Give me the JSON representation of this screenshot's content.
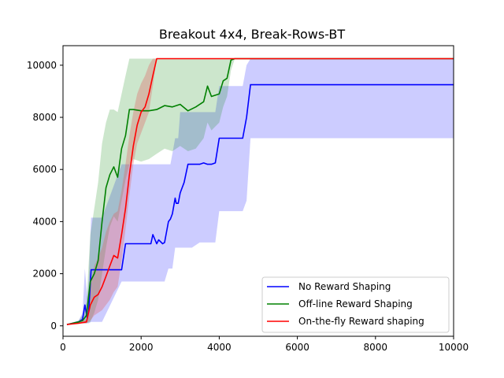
{
  "chart_data": {
    "type": "line",
    "title": "Breakout 4x4, Break-Rows-BT",
    "xlabel": "",
    "ylabel": "",
    "xlim": [
      0,
      10000
    ],
    "ylim": [
      -400,
      10750
    ],
    "x_ticks": [
      0,
      2000,
      4000,
      6000,
      8000,
      10000
    ],
    "y_ticks": [
      0,
      2000,
      4000,
      6000,
      8000,
      10000
    ],
    "x_tick_labels": [
      "0",
      "2000",
      "4000",
      "6000",
      "8000",
      "10000"
    ],
    "y_tick_labels": [
      "0",
      "2000",
      "4000",
      "6000",
      "8000",
      "10000"
    ],
    "grid": false,
    "legend_position": "lower-right",
    "series": [
      {
        "name": "No Reward Shaping",
        "color": "#0000ff",
        "band_color": "#0000ff",
        "band_opacity": 0.2,
        "x": [
          100,
          400,
          500,
          560,
          620,
          660,
          720,
          900,
          1000,
          1500,
          1600,
          2250,
          2300,
          2400,
          2450,
          2550,
          2600,
          2700,
          2750,
          2800,
          2870,
          2900,
          2950,
          3000,
          3100,
          3200,
          3300,
          3500,
          3600,
          3700,
          3800,
          3900,
          4000,
          4050,
          4600,
          4700,
          4800,
          5000,
          8000,
          8200,
          10000
        ],
        "y": [
          50,
          150,
          250,
          800,
          300,
          600,
          2150,
          2150,
          2150,
          2150,
          3150,
          3150,
          3500,
          3150,
          3300,
          3150,
          3200,
          4000,
          4100,
          4300,
          4900,
          4700,
          4700,
          5100,
          5500,
          6200,
          6200,
          6200,
          6250,
          6200,
          6200,
          6250,
          7200,
          7200,
          7200,
          8000,
          9250,
          9250,
          9250,
          9250,
          9250
        ],
        "lower": [
          50,
          100,
          100,
          100,
          100,
          100,
          150,
          150,
          150,
          1700,
          1700,
          1700,
          1700,
          1700,
          1700,
          1700,
          1700,
          2200,
          2200,
          2200,
          3000,
          3000,
          3000,
          3000,
          3000,
          3000,
          3000,
          3200,
          3200,
          3200,
          3200,
          3200,
          4400,
          4400,
          4400,
          4800,
          7200,
          7200,
          7200,
          7200,
          7200
        ],
        "upper": [
          60,
          200,
          500,
          2200,
          1100,
          1800,
          4150,
          4150,
          4150,
          6200,
          6200,
          6200,
          6200,
          6200,
          6200,
          6200,
          6200,
          6200,
          6200,
          6600,
          7200,
          7200,
          7200,
          8200,
          8200,
          8200,
          8200,
          8200,
          8200,
          8200,
          8200,
          8200,
          9200,
          9200,
          9200,
          10000,
          10250,
          10250,
          10250,
          10250,
          10250
        ]
      },
      {
        "name": "Off-line Reward Shaping",
        "color": "#008000",
        "band_color": "#008000",
        "band_opacity": 0.2,
        "x": [
          100,
          400,
          500,
          600,
          700,
          800,
          900,
          1000,
          1100,
          1200,
          1300,
          1400,
          1500,
          1600,
          1700,
          1800,
          2000,
          2200,
          2400,
          2600,
          2800,
          3000,
          3200,
          3400,
          3600,
          3700,
          3800,
          4000,
          4100,
          4200,
          4300,
          4400,
          4500,
          10000
        ],
        "y": [
          50,
          150,
          200,
          400,
          1700,
          2000,
          2500,
          4000,
          5300,
          5800,
          6100,
          5700,
          6800,
          7300,
          8300,
          8300,
          8250,
          8250,
          8300,
          8450,
          8400,
          8500,
          8250,
          8400,
          8600,
          9200,
          8800,
          8900,
          9400,
          9500,
          10200,
          10250,
          10250,
          10250
        ],
        "lower": [
          50,
          100,
          100,
          100,
          150,
          500,
          1000,
          2000,
          3000,
          3800,
          4200,
          4000,
          4800,
          5600,
          6200,
          6400,
          6300,
          6400,
          6600,
          6800,
          6700,
          6900,
          6700,
          6800,
          7200,
          7800,
          7500,
          7800,
          8400,
          8800,
          9800,
          10250,
          10250,
          10250
        ],
        "upper": [
          60,
          200,
          400,
          900,
          3500,
          4500,
          5500,
          7000,
          7800,
          8300,
          8300,
          8200,
          8900,
          9600,
          10250,
          10250,
          10250,
          10250,
          10250,
          10250,
          10250,
          10250,
          10250,
          10250,
          10250,
          10250,
          10250,
          10250,
          10250,
          10250,
          10250,
          10250,
          10250,
          10250
        ]
      },
      {
        "name": "On-the-fly Reward shaping",
        "color": "#ff0000",
        "band_color": "#e06060",
        "band_opacity": 0.35,
        "x": [
          100,
          400,
          600,
          700,
          800,
          900,
          1000,
          1100,
          1200,
          1300,
          1400,
          1500,
          1600,
          1700,
          1800,
          1900,
          2000,
          2100,
          2200,
          2300,
          2400,
          10000
        ],
        "y": [
          50,
          100,
          150,
          800,
          1100,
          1200,
          1500,
          1900,
          2300,
          2700,
          2600,
          3500,
          4500,
          5800,
          6900,
          7700,
          8200,
          8400,
          8900,
          9600,
          10250,
          10250
        ],
        "lower": [
          50,
          80,
          100,
          200,
          400,
          500,
          600,
          800,
          1000,
          1300,
          1500,
          2500,
          3700,
          5000,
          6200,
          7000,
          7400,
          7800,
          8200,
          9200,
          10250,
          10250
        ],
        "upper": [
          60,
          120,
          250,
          1500,
          2300,
          2600,
          3000,
          3600,
          4000,
          4300,
          4400,
          5200,
          6200,
          7300,
          8200,
          8900,
          9300,
          9600,
          10000,
          10250,
          10250,
          10250
        ]
      }
    ]
  }
}
